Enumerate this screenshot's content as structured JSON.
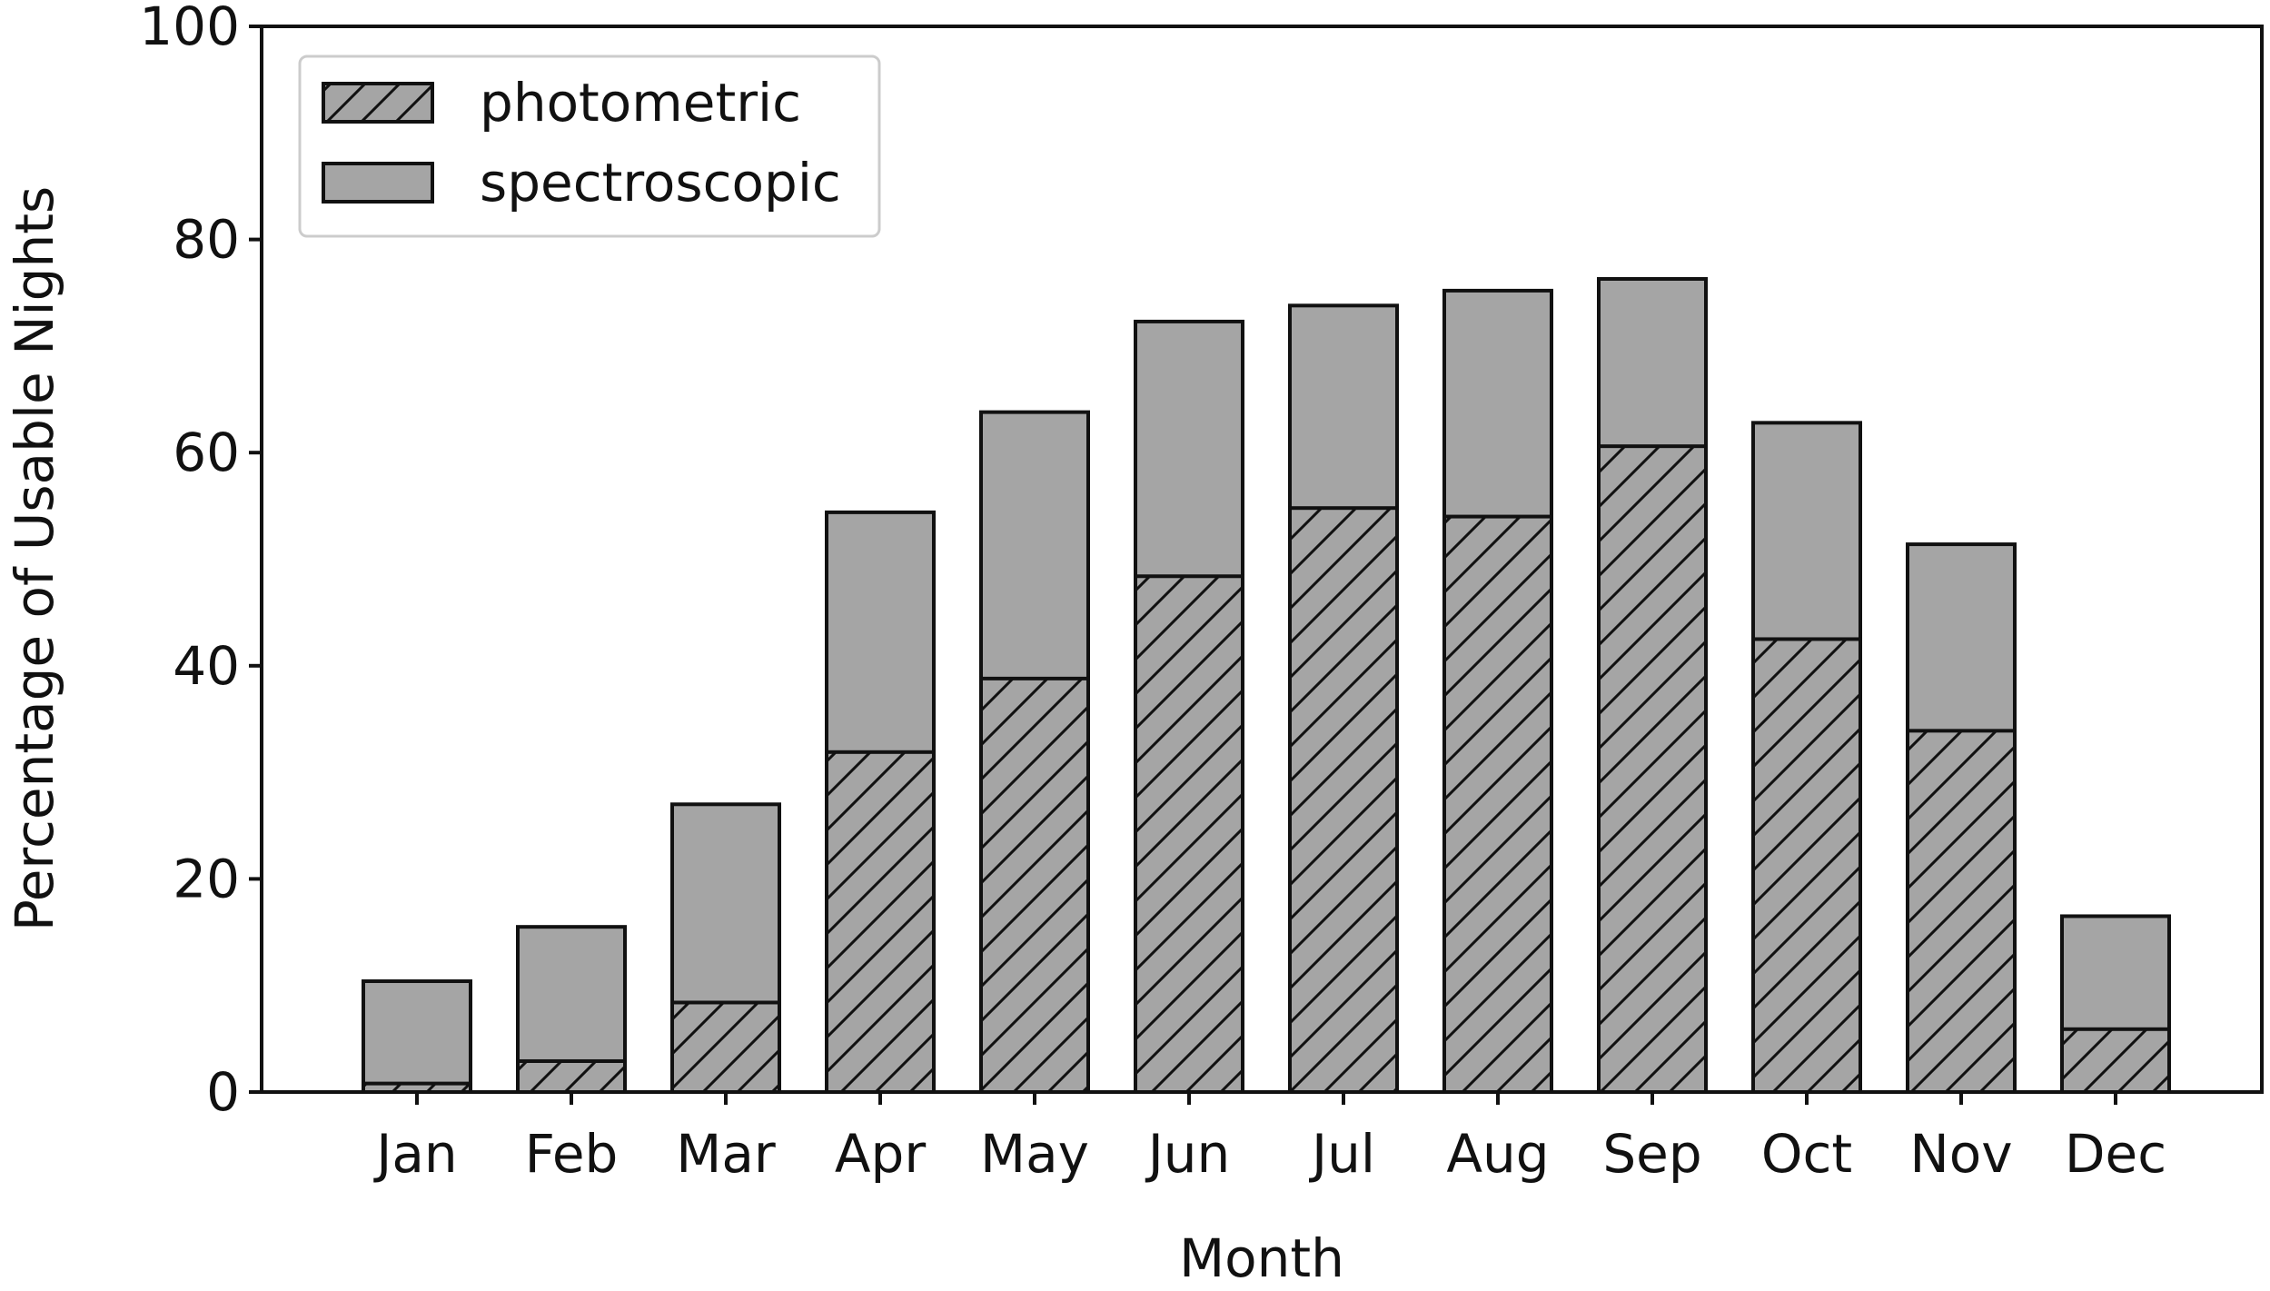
{
  "chart_data": {
    "type": "bar",
    "title": "",
    "xlabel": "Month",
    "ylabel": "Percentage of Usable Nights",
    "ylim": [
      0,
      100
    ],
    "yticks": [
      0,
      20,
      40,
      60,
      80,
      100
    ],
    "categories": [
      "Jan",
      "Feb",
      "Mar",
      "Apr",
      "May",
      "Jun",
      "Jul",
      "Aug",
      "Sep",
      "Oct",
      "Nov",
      "Dec"
    ],
    "series": [
      {
        "name": "photometric",
        "hatch": "diagonal",
        "values": [
          0.8,
          2.9,
          8.4,
          31.9,
          38.8,
          48.4,
          54.8,
          54.0,
          60.6,
          42.5,
          33.9,
          5.9
        ]
      },
      {
        "name": "spectroscopic",
        "hatch": "none",
        "values": [
          10.4,
          15.5,
          27.0,
          54.4,
          63.8,
          72.3,
          73.8,
          75.2,
          76.3,
          62.8,
          51.4,
          16.5
        ]
      }
    ],
    "legend": {
      "placement": "top-left",
      "entries": [
        "photometric",
        "spectroscopic"
      ]
    },
    "grid": false,
    "colors": {
      "bar": "#a5a5a5",
      "edge": "#111111"
    }
  }
}
